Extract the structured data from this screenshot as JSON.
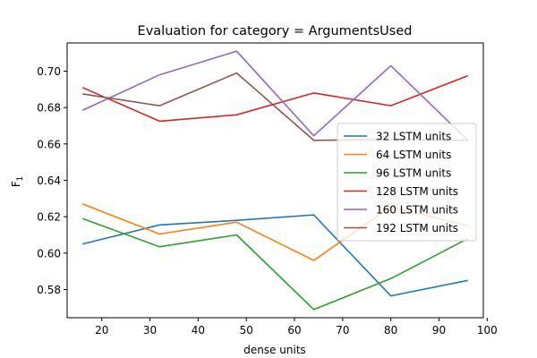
{
  "chart_data": {
    "type": "line",
    "title": "Evaluation for category = ArgumentsUsed",
    "xlabel": "dense units",
    "ylabel": "F",
    "ylabel_subscript": "1",
    "xlim": [
      12.8,
      99.2
    ],
    "ylim": [
      0.5645,
      0.7155
    ],
    "xticks": [
      20,
      30,
      40,
      50,
      60,
      70,
      80,
      90,
      100
    ],
    "yticks": [
      0.58,
      0.6,
      0.62,
      0.64,
      0.66,
      0.68,
      0.7
    ],
    "ytick_labels": [
      "0.58",
      "0.60",
      "0.62",
      "0.64",
      "0.66",
      "0.68",
      "0.70"
    ],
    "x": [
      16,
      32,
      48,
      64,
      80,
      96
    ],
    "legend_position": "center-right",
    "series": [
      {
        "name": "32 LSTM units",
        "color": "#1f77b4",
        "values": [
          0.605,
          0.6155,
          0.618,
          0.621,
          0.5765,
          0.585
        ]
      },
      {
        "name": "64 LSTM units",
        "color": "#ff7f0e",
        "values": [
          0.627,
          0.6105,
          0.617,
          0.596,
          0.6255,
          0.615
        ]
      },
      {
        "name": "96 LSTM units",
        "color": "#2ca02c",
        "values": [
          0.619,
          0.6035,
          0.61,
          0.569,
          0.586,
          0.608
        ]
      },
      {
        "name": "128 LSTM units",
        "color": "#d62728",
        "values": [
          0.691,
          0.6725,
          0.676,
          0.688,
          0.681,
          0.6975
        ]
      },
      {
        "name": "160 LSTM units",
        "color": "#9467bd",
        "values": [
          0.6785,
          0.698,
          0.711,
          0.6645,
          0.703,
          0.662
        ]
      },
      {
        "name": "192 LSTM units",
        "color": "#8c564b",
        "values": [
          0.6875,
          0.681,
          0.699,
          0.662,
          0.6625,
          0.662
        ]
      }
    ]
  }
}
